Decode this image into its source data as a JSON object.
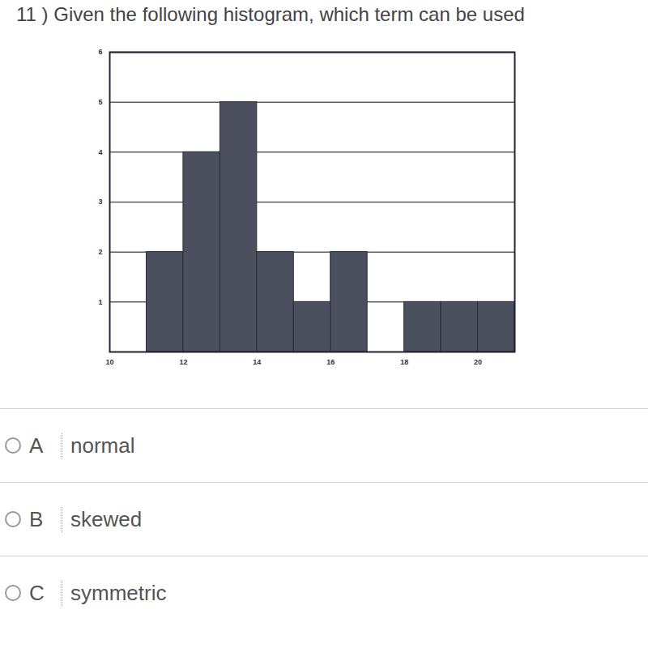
{
  "chart_data": {
    "type": "histogram",
    "title": "11 ) Given the following histogram, which term can be used",
    "bins": [
      11,
      12,
      13,
      14,
      15,
      16,
      17,
      18,
      19,
      20,
      21
    ],
    "values": [
      2,
      4,
      5,
      2,
      1,
      2,
      0,
      1,
      1,
      1
    ],
    "color": "#4b4f5e",
    "xlim": [
      10,
      21
    ],
    "ylim": [
      0,
      6
    ],
    "xticks": [
      10,
      12,
      14,
      16,
      18,
      20
    ],
    "yticks": [
      1,
      2,
      3,
      4,
      5,
      6
    ],
    "grid": true,
    "annotations": [
      {
        "letter": "A",
        "text": "normal"
      },
      {
        "letter": "B",
        "text": "skewed"
      },
      {
        "letter": "C",
        "text": "symmetric"
      }
    ]
  }
}
